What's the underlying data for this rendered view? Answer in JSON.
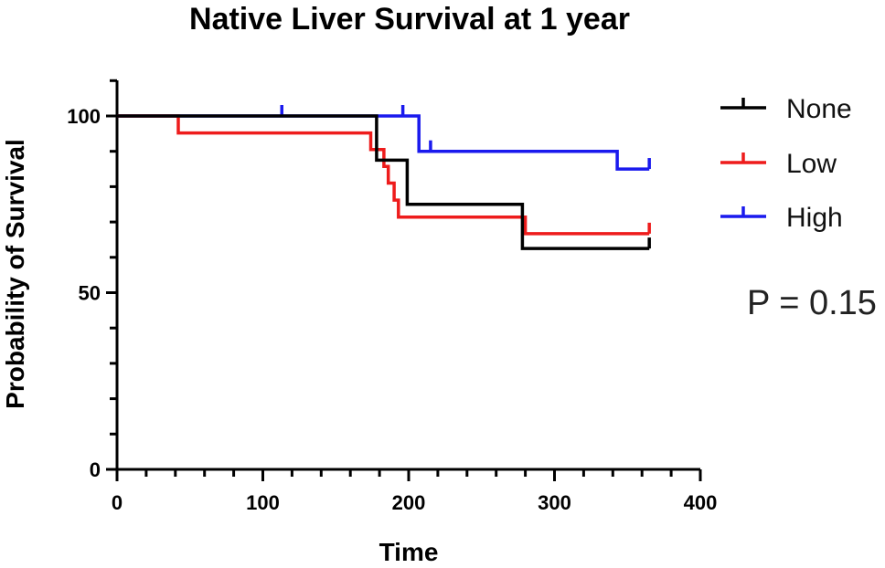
{
  "chart_data": {
    "type": "line",
    "subtype": "kaplan-meier step plot",
    "title": "Native Liver Survival at 1 year",
    "xlabel": "Time",
    "ylabel": "Probability of Survival",
    "xlim": [
      0,
      400
    ],
    "ylim": [
      0,
      100
    ],
    "x_ticks": [
      "0",
      "100",
      "200",
      "300",
      "400"
    ],
    "y_ticks": [
      "0",
      "50",
      "100"
    ],
    "grid": false,
    "legend_position": "right",
    "annotation": "P = 0.15",
    "series": [
      {
        "name": "None",
        "color": "#000000",
        "steps": [
          [
            0,
            100
          ],
          [
            178,
            100
          ],
          [
            178,
            87.5
          ],
          [
            199,
            87.5
          ],
          [
            199,
            75
          ],
          [
            278,
            75
          ],
          [
            278,
            62.5
          ],
          [
            365,
            62.5
          ]
        ],
        "censored": [
          [
            365,
            62.5
          ]
        ]
      },
      {
        "name": "Low",
        "color": "#ee1c1c",
        "steps": [
          [
            0,
            100
          ],
          [
            42,
            100
          ],
          [
            42,
            95.2
          ],
          [
            174,
            95.2
          ],
          [
            174,
            90.5
          ],
          [
            183,
            90.5
          ],
          [
            183,
            85.7
          ],
          [
            186,
            85.7
          ],
          [
            186,
            81
          ],
          [
            190,
            81
          ],
          [
            190,
            76.2
          ],
          [
            193,
            76.2
          ],
          [
            193,
            71.4
          ],
          [
            280,
            71.4
          ],
          [
            280,
            66.7
          ],
          [
            365,
            66.7
          ]
        ],
        "censored": [
          [
            365,
            66.7
          ]
        ]
      },
      {
        "name": "High",
        "color": "#1a1aee",
        "steps": [
          [
            0,
            100
          ],
          [
            207,
            100
          ],
          [
            207,
            90
          ],
          [
            343,
            90
          ],
          [
            343,
            85
          ],
          [
            365,
            85
          ]
        ],
        "censored": [
          [
            113,
            100
          ],
          [
            196,
            100
          ],
          [
            215,
            90
          ],
          [
            365,
            85
          ]
        ]
      }
    ]
  }
}
